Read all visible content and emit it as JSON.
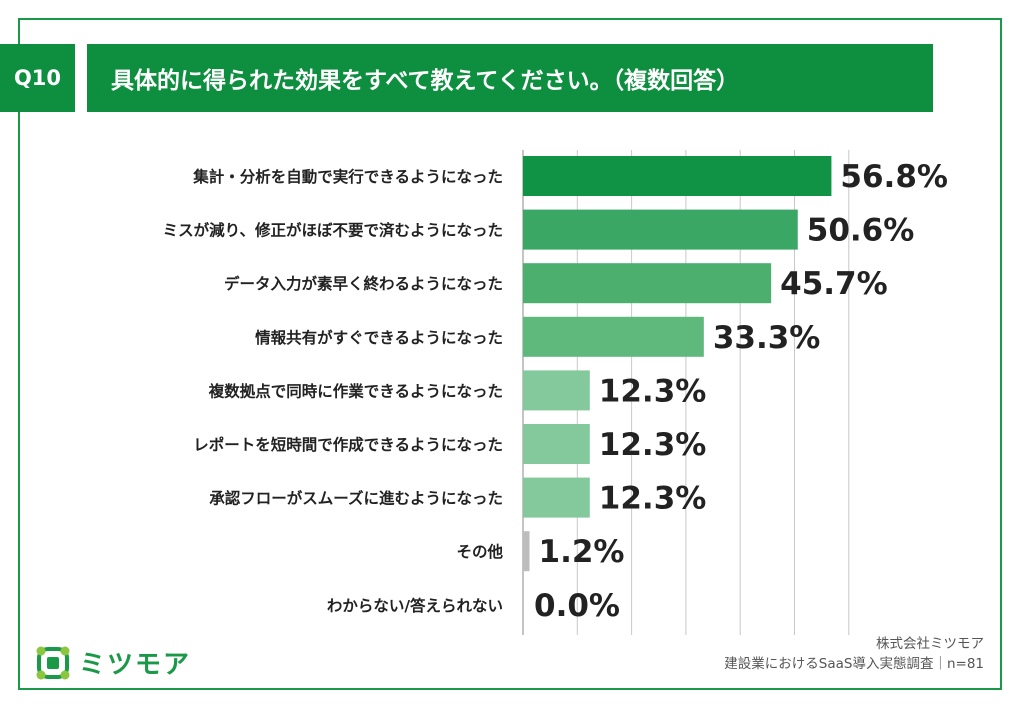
{
  "header": {
    "question_number": "Q10",
    "question_text": "具体的に得られた効果をすべて教えてください。（複数回答）"
  },
  "chart_data": {
    "type": "bar",
    "orientation": "horizontal",
    "categories": [
      "集計・分析を自動で実行できるようになった",
      "ミスが減り、修正がほぼ不要で済むようになった",
      "データ入力が素早く終わるようになった",
      "情報共有がすぐできるようになった",
      "複数拠点で同時に作業できるようになった",
      "レポートを短時間で作成できるようになった",
      "承認フローがスムーズに進むようになった",
      "その他",
      "わからない/答えられない"
    ],
    "values": [
      56.8,
      50.6,
      45.7,
      33.3,
      12.3,
      12.3,
      12.3,
      1.2,
      0.0
    ],
    "value_labels": [
      "56.8%",
      "50.6%",
      "45.7%",
      "33.3%",
      "12.3%",
      "12.3%",
      "12.3%",
      "1.2%",
      "0.0%"
    ],
    "xlim": [
      0,
      60
    ],
    "grid": true,
    "bar_colors": [
      "#109344",
      "#3aa864",
      "#4caf6e",
      "#5fb87c",
      "#83c99b",
      "#83c99b",
      "#83c99b",
      "#bdbdbd",
      "#bdbdbd"
    ]
  },
  "logo": {
    "text": "ミツモア",
    "icon": "mitsumore-logo-icon",
    "color": "#1a9a48"
  },
  "source": {
    "company": "株式会社ミツモア",
    "survey": "建設業におけるSaaS導入実態調査｜n=81"
  }
}
